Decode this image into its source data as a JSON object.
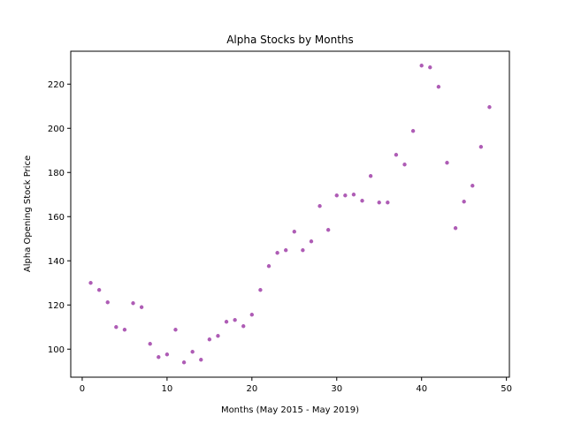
{
  "chart_data": {
    "type": "scatter",
    "title": "Alpha Stocks by Months",
    "xlabel": "Months (May 2015 - May 2019)",
    "ylabel": "Alpha Opening Stock Price",
    "xlim": [
      -1.35,
      50.35
    ],
    "ylim": [
      87.3,
      234.9
    ],
    "xticks": [
      0,
      10,
      20,
      30,
      40,
      50
    ],
    "yticks": [
      100,
      120,
      140,
      160,
      180,
      200,
      220
    ],
    "grid": false,
    "legend": "none",
    "marker_color": "#a040a8",
    "series": [
      {
        "x": [
          1,
          2,
          3,
          4,
          5,
          6,
          7,
          8,
          9,
          10,
          11,
          12,
          13,
          14,
          15,
          16,
          17,
          18,
          19,
          20,
          21,
          22,
          23,
          24,
          25,
          26,
          27,
          28,
          29,
          30,
          31,
          32,
          33,
          34,
          35,
          36,
          37,
          38,
          39,
          40,
          41,
          42,
          43,
          44,
          45,
          46,
          47,
          48
        ],
        "y": [
          130,
          126.8,
          121.2,
          110,
          108.8,
          120.8,
          119,
          102.4,
          96.4,
          97.6,
          108.8,
          94,
          98.8,
          95.2,
          104.4,
          106,
          112.4,
          113.2,
          110.4,
          115.6,
          126.8,
          137.6,
          143.6,
          144.8,
          153.2,
          144.8,
          148.8,
          164.8,
          154,
          169.6,
          169.6,
          170,
          167.2,
          178.4,
          166.4,
          166.4,
          188,
          183.6,
          198.8,
          228.4,
          227.6,
          218.8,
          184.4,
          154.8,
          166.8,
          174,
          191.6,
          209.6
        ]
      }
    ]
  }
}
